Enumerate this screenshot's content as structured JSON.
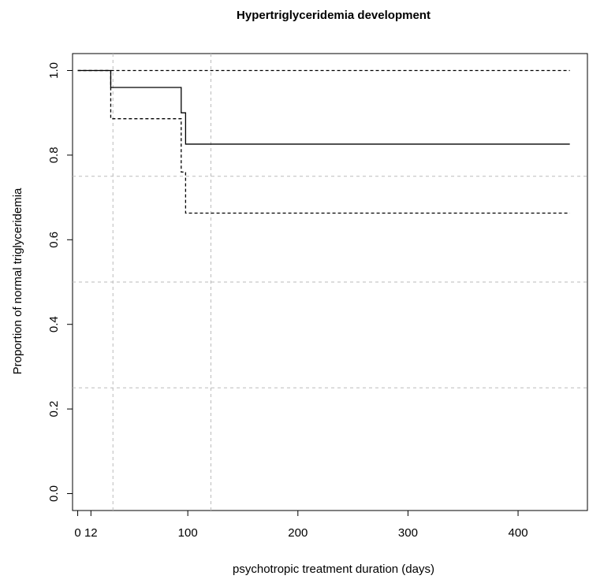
{
  "chart_data": {
    "type": "step",
    "title": "Hypertriglyceridemia development",
    "x_label": "psychotropic treatment duration (days)",
    "y_label": "Proportion of normal triglyceridemia",
    "xlim": [
      -4.7,
      463
    ],
    "ylim": [
      -0.04,
      1.04
    ],
    "xticks": [
      0,
      12,
      100,
      200,
      300,
      400
    ],
    "yticks": [
      {
        "value": 0,
        "label": "0.0"
      },
      0.2,
      0.4,
      0.6,
      0.8,
      {
        "value": 1,
        "label": "1.0"
      }
    ],
    "hlines": [
      0.25,
      0.5,
      0.75
    ],
    "vlines": [
      32,
      121
    ],
    "grid_color": "#bbbbbb",
    "series": [
      {
        "color": "#000000",
        "dash": false,
        "x": [
          0,
          30,
          94,
          98,
          447
        ],
        "values": [
          1,
          0.96,
          0.9,
          0.826,
          0.826
        ]
      },
      {
        "color": "#000000",
        "dash": true,
        "x": [
          0,
          447
        ],
        "values": [
          1,
          1
        ]
      },
      {
        "color": "#000000",
        "dash": true,
        "x": [
          0,
          30,
          94,
          98,
          447
        ],
        "values": [
          1,
          0.886,
          0.76,
          0.663,
          0.663
        ]
      }
    ]
  }
}
